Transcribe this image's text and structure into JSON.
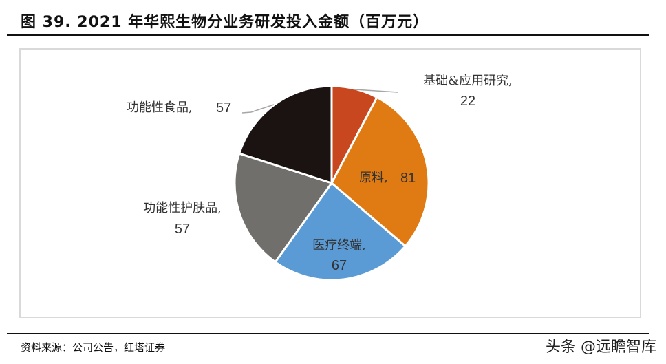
{
  "header": {
    "title": "图 39. 2021 年华熙生物分业务研发投入金额（百万元）"
  },
  "footer": {
    "source": "资料来源：公司公告，红塔证券",
    "watermark": "头条 @远瞻智库"
  },
  "chart_data": {
    "type": "pie",
    "title": "图 39. 2021 年华熙生物分业务研发投入金额（百万元）",
    "unit": "百万元",
    "start_angle": "12 o'clock, clockwise",
    "categories": [
      "基础&应用研究",
      "原料",
      "医疗终端",
      "功能性护肤品",
      "功能性食品"
    ],
    "values": [
      22,
      81,
      67,
      57,
      57
    ],
    "colors": [
      "#c9471f",
      "#e07b13",
      "#5b9bd5",
      "#716f6b",
      "#1a1311"
    ],
    "labels": [
      {
        "name": "基础&应用研究,",
        "value": "22"
      },
      {
        "name": "原料,",
        "value": "81"
      },
      {
        "name": "医疗终端,",
        "value": "67"
      },
      {
        "name": "功能性护肤品,",
        "value": "57"
      },
      {
        "name": "功能性食品,",
        "value": "57"
      }
    ],
    "legend": "none (data labels on slices)"
  }
}
